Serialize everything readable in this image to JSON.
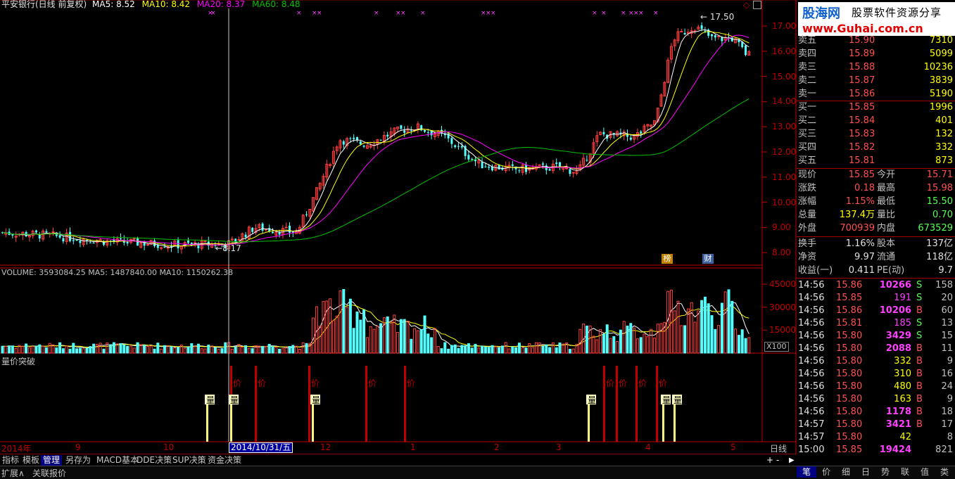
{
  "header": {
    "title": "平安银行(日线 前复权)",
    "ma5": "MA5: 8.52",
    "ma10": "MA10: 8.42",
    "ma20": "MA20: 8.37",
    "ma60": "MA60: 8.48"
  },
  "watermark": {
    "line1": "股海网",
    "line2": "股票软件资源分享",
    "line3": "www.Guhai.com.cn"
  },
  "price_axis": [
    "17.00",
    "16.00",
    "15.00",
    "14.00",
    "13.00",
    "12.00",
    "11.00",
    "10.00",
    "9.00",
    "8.00"
  ],
  "price_marks": {
    "high": "17.50",
    "low": "8.17"
  },
  "badges": {
    "rank": "榜",
    "finance": "财"
  },
  "volume": {
    "header": "VOLUME: 3593084.25  MA5: 1487840.00  MA10: 1150262.38",
    "axis": [
      "45000",
      "30000",
      "15000"
    ],
    "unit": "X100"
  },
  "indicator": {
    "title": "量价突破",
    "vol_label": "量",
    "price_label": "价"
  },
  "date_axis": {
    "year": "2014年",
    "months": [
      "9",
      "10",
      "11",
      "12",
      "1",
      "2",
      "3",
      "4",
      "5"
    ],
    "cursor_date": "2014/10/31/五",
    "period": "日线"
  },
  "bottom_tabs": [
    "指标",
    "模板",
    "管理",
    "另存为",
    "MACD基本",
    "DDE决策",
    "SUP决策",
    "资金决策"
  ],
  "status_left": [
    "扩展∧",
    "关联报价"
  ],
  "right_tabs": [
    "笔",
    "价",
    "细",
    "日",
    "势",
    "联",
    "值",
    "类"
  ],
  "quote": {
    "sell": [
      {
        "label": "卖五",
        "price": "15.90",
        "vol": "7310"
      },
      {
        "label": "卖四",
        "price": "15.89",
        "vol": "5099"
      },
      {
        "label": "卖三",
        "price": "15.88",
        "vol": "10236"
      },
      {
        "label": "卖二",
        "price": "15.87",
        "vol": "3839"
      },
      {
        "label": "卖一",
        "price": "15.86",
        "vol": "5190"
      }
    ],
    "buy": [
      {
        "label": "买一",
        "price": "15.85",
        "vol": "1996"
      },
      {
        "label": "买二",
        "price": "15.84",
        "vol": "401"
      },
      {
        "label": "买三",
        "price": "15.83",
        "vol": "132"
      },
      {
        "label": "买四",
        "price": "15.82",
        "vol": "332"
      },
      {
        "label": "买五",
        "price": "15.81",
        "vol": "873"
      }
    ],
    "stats": [
      {
        "l1": "现价",
        "v1": "15.85",
        "l2": "今开",
        "v2": "15.71"
      },
      {
        "l1": "涨跌",
        "v1": "0.18",
        "l2": "最高",
        "v2": "15.98"
      },
      {
        "l1": "涨幅",
        "v1": "1.15%",
        "l2": "最低",
        "v2": "15.50"
      },
      {
        "l1": "总量",
        "v1": "137.4万",
        "l2": "量比",
        "v2": "0.70"
      },
      {
        "l1": "外盘",
        "v1": "700939",
        "l2": "内盘",
        "v2": "673529"
      }
    ],
    "finance": [
      {
        "l1": "换手",
        "v1": "1.16%",
        "l2": "股本",
        "v2": "137亿"
      },
      {
        "l1": "净资",
        "v1": "9.97",
        "l2": "流通",
        "v2": "118亿"
      },
      {
        "l1": "收益(一)",
        "v1": "0.411",
        "l2": "PE(动)",
        "v2": "9.7"
      }
    ],
    "ticks": [
      {
        "t": "14:56",
        "p": "15.86",
        "v": "10266",
        "s": "S",
        "n": "158"
      },
      {
        "t": "14:56",
        "p": "15.85",
        "v": "191",
        "s": "S",
        "n": "20"
      },
      {
        "t": "14:56",
        "p": "15.86",
        "v": "10206",
        "s": "B",
        "n": "60"
      },
      {
        "t": "14:56",
        "p": "15.81",
        "v": "185",
        "s": "S",
        "n": "13"
      },
      {
        "t": "14:56",
        "p": "15.80",
        "v": "3429",
        "s": "S",
        "n": "15"
      },
      {
        "t": "14:56",
        "p": "15.80",
        "v": "2088",
        "s": "B",
        "n": "11"
      },
      {
        "t": "14:56",
        "p": "15.80",
        "v": "332",
        "s": "B",
        "n": "9"
      },
      {
        "t": "14:56",
        "p": "15.80",
        "v": "310",
        "s": "B",
        "n": "16"
      },
      {
        "t": "14:56",
        "p": "15.80",
        "v": "480",
        "s": "B",
        "n": "24"
      },
      {
        "t": "14:56",
        "p": "15.80",
        "v": "163",
        "s": "B",
        "n": "9"
      },
      {
        "t": "14:56",
        "p": "15.80",
        "v": "1178",
        "s": "B",
        "n": "18"
      },
      {
        "t": "14:57",
        "p": "15.80",
        "v": "3421",
        "s": "B",
        "n": "17"
      },
      {
        "t": "14:57",
        "p": "15.80",
        "v": "42",
        "s": "",
        "n": "8"
      },
      {
        "t": "15:00",
        "p": "15.85",
        "v": "19424",
        "s": "",
        "n": "821"
      }
    ]
  },
  "colors": {
    "up": "#ff4040",
    "down": "#54ffff",
    "ma5": "#ffffff",
    "ma10": "#ffff00",
    "ma20": "#ff00ff",
    "ma60": "#00c000",
    "grid": "#800000"
  }
}
